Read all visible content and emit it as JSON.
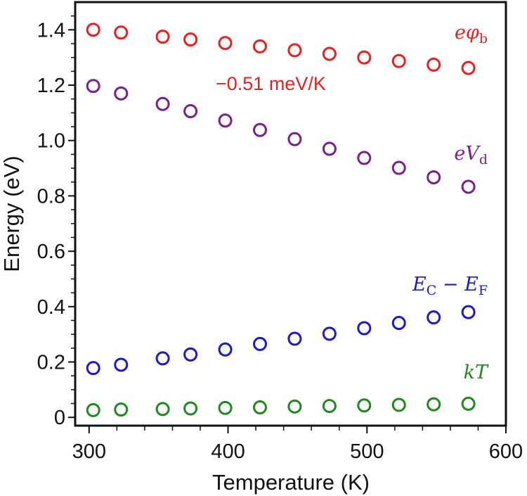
{
  "chart_data": {
    "type": "scatter",
    "xlabel": "Temperature (K)",
    "ylabel": "Energy (eV)",
    "xlim": [
      290,
      600
    ],
    "ylim": [
      -0.03,
      1.5
    ],
    "x_ticks": [
      "300",
      "400",
      "500",
      "600"
    ],
    "y_ticks": [
      "0",
      "0.2",
      "0.4",
      "0.6",
      "0.8",
      "1.0",
      "1.2",
      "1.4"
    ],
    "x": [
      303,
      323,
      353,
      373,
      398,
      423,
      448,
      473,
      498,
      523,
      548,
      573
    ],
    "series": [
      {
        "label": "eφ",
        "sub": "b",
        "color": "#e8201e",
        "values": [
          1.4,
          1.39,
          1.375,
          1.365,
          1.352,
          1.34,
          1.326,
          1.313,
          1.3,
          1.287,
          1.274,
          1.262
        ]
      },
      {
        "label": "eV",
        "sub": "d",
        "color": "#7a1f8f",
        "values": [
          1.197,
          1.17,
          1.132,
          1.106,
          1.072,
          1.038,
          1.005,
          0.97,
          0.937,
          0.901,
          0.867,
          0.833
        ]
      },
      {
        "label": "E",
        "sub": "C",
        "label2": " − E",
        "sub2": "F",
        "color": "#1a1acc",
        "values": [
          0.178,
          0.19,
          0.213,
          0.227,
          0.245,
          0.265,
          0.284,
          0.302,
          0.322,
          0.341,
          0.361,
          0.38
        ]
      },
      {
        "label": "kT",
        "color": "#1e8a1e",
        "values": [
          0.026,
          0.028,
          0.03,
          0.032,
          0.034,
          0.036,
          0.039,
          0.041,
          0.043,
          0.045,
          0.047,
          0.049
        ]
      }
    ],
    "annotation": "−0.51 meV/K",
    "annotation_color": "#e8201e",
    "marker": "open-circle",
    "grid": false,
    "legend": "inline labels at right"
  }
}
